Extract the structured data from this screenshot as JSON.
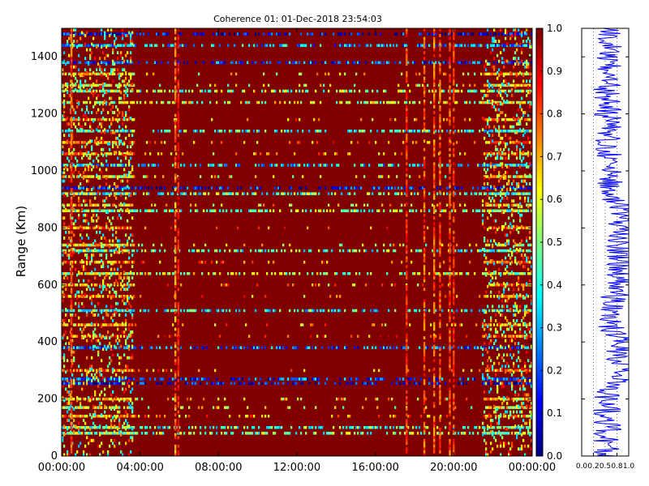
{
  "chart_data": [
    {
      "type": "heatmap",
      "title": "Coherence 01: 01-Dec-2018 23:54:03",
      "xlabel": "",
      "ylabel": "Range (Km)",
      "x_tick_labels": [
        "00:00:00",
        "04:00:00",
        "08:00:00",
        "12:00:00",
        "16:00:00",
        "20:00:00",
        "00:00:00"
      ],
      "x_ticks_hours": [
        0,
        4,
        8,
        12,
        16,
        20,
        24
      ],
      "xlim_hours": [
        0,
        24
      ],
      "y_ticks": [
        0,
        200,
        400,
        600,
        800,
        1000,
        1200,
        1400
      ],
      "ylim": [
        0,
        1500
      ],
      "colormap": "jet",
      "clim": [
        0,
        1
      ],
      "background_value": 1.0,
      "colorbar_ticks": [
        "0.0",
        "0.1",
        "0.2",
        "0.3",
        "0.4",
        "0.5",
        "0.6",
        "0.7",
        "0.8",
        "0.9",
        "1.0"
      ],
      "time_stripes": [
        {
          "hour": 0.5,
          "min_value": 0.72
        },
        {
          "hour": 5.8,
          "min_value": 0.65
        },
        {
          "hour": 5.95,
          "min_value": 0.8
        },
        {
          "hour": 17.6,
          "min_value": 0.75
        },
        {
          "hour": 18.5,
          "min_value": 0.7
        },
        {
          "hour": 19.0,
          "min_value": 0.68
        },
        {
          "hour": 19.3,
          "min_value": 0.7
        },
        {
          "hour": 19.8,
          "min_value": 0.72
        },
        {
          "hour": 20.0,
          "min_value": 0.75
        }
      ],
      "range_bands": [
        {
          "km": 1480,
          "value": 0.12
        },
        {
          "km": 1440,
          "value": 0.3
        },
        {
          "km": 1380,
          "value": 0.2
        },
        {
          "km": 1340,
          "value": 0.65
        },
        {
          "km": 1300,
          "value": 0.6
        },
        {
          "km": 1280,
          "value": 0.5
        },
        {
          "km": 1240,
          "value": 0.55
        },
        {
          "km": 1180,
          "value": 0.7
        },
        {
          "km": 1140,
          "value": 0.4
        },
        {
          "km": 1100,
          "value": 0.75
        },
        {
          "km": 1060,
          "value": 0.7
        },
        {
          "km": 1020,
          "value": 0.35
        },
        {
          "km": 980,
          "value": 0.6
        },
        {
          "km": 940,
          "value": 0.15
        },
        {
          "km": 920,
          "value": 0.45
        },
        {
          "km": 880,
          "value": 0.65
        },
        {
          "km": 860,
          "value": 0.5
        },
        {
          "km": 800,
          "value": 0.75
        },
        {
          "km": 740,
          "value": 0.6
        },
        {
          "km": 720,
          "value": 0.45
        },
        {
          "km": 680,
          "value": 0.75
        },
        {
          "km": 640,
          "value": 0.55
        },
        {
          "km": 600,
          "value": 0.7
        },
        {
          "km": 560,
          "value": 0.72
        },
        {
          "km": 510,
          "value": 0.4
        },
        {
          "km": 460,
          "value": 0.7
        },
        {
          "km": 420,
          "value": 0.78
        },
        {
          "km": 380,
          "value": 0.25
        },
        {
          "km": 300,
          "value": 0.75
        },
        {
          "km": 270,
          "value": 0.2
        },
        {
          "km": 255,
          "value": 0.1
        },
        {
          "km": 200,
          "value": 0.65
        },
        {
          "km": 170,
          "value": 0.6
        },
        {
          "km": 140,
          "value": 0.7
        },
        {
          "km": 100,
          "value": 0.45
        },
        {
          "km": 80,
          "value": 0.5
        }
      ],
      "early_period_hours": [
        0,
        3.7
      ],
      "late_period_hours": [
        21.5,
        24
      ]
    },
    {
      "type": "line",
      "description_series": "range profile of coherence",
      "x_tick_labels": [
        "0.0",
        "0.2",
        "0.5",
        "0.8",
        "1.0"
      ],
      "x_ticks": [
        0.0,
        0.25,
        0.5,
        0.75,
        1.0
      ],
      "xlim": [
        0,
        1
      ],
      "ylim": [
        0,
        1500
      ],
      "line_color": "#0000ff"
    }
  ]
}
